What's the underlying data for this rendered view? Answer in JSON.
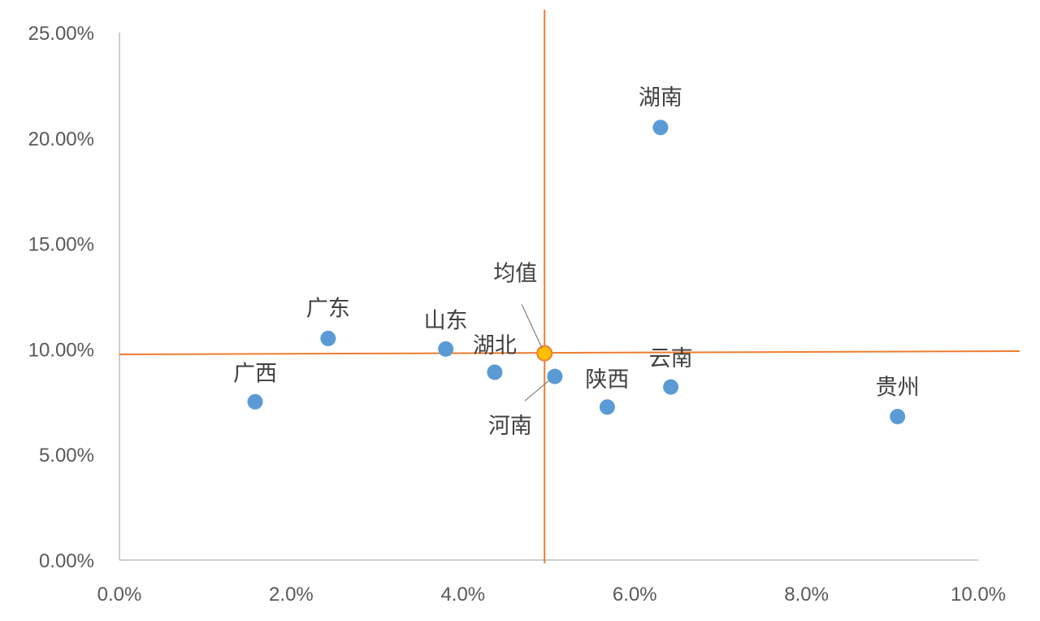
{
  "chart_data": {
    "type": "scatter",
    "title": "",
    "xlabel": "",
    "ylabel": "",
    "xlim": [
      0,
      0.1
    ],
    "ylim": [
      0,
      0.25
    ],
    "x_ticks": [
      "0.0%",
      "2.0%",
      "4.0%",
      "6.0%",
      "8.0%",
      "10.0%"
    ],
    "y_ticks": [
      "0.00%",
      "5.00%",
      "10.00%",
      "15.00%",
      "20.00%",
      "25.00%"
    ],
    "points": [
      {
        "label": "广西",
        "x": 0.0158,
        "y": 0.075
      },
      {
        "label": "广东",
        "x": 0.0243,
        "y": 0.105
      },
      {
        "label": "山东",
        "x": 0.038,
        "y": 0.1
      },
      {
        "label": "湖北",
        "x": 0.0437,
        "y": 0.089
      },
      {
        "label": "河南",
        "x": 0.0507,
        "y": 0.087
      },
      {
        "label": "陕西",
        "x": 0.0568,
        "y": 0.0725
      },
      {
        "label": "湖南",
        "x": 0.063,
        "y": 0.205
      },
      {
        "label": "云南",
        "x": 0.0642,
        "y": 0.082
      },
      {
        "label": "贵州",
        "x": 0.0906,
        "y": 0.068
      }
    ],
    "mean": {
      "label": "均值",
      "x": 0.0495,
      "y": 0.098
    },
    "grid": false,
    "colors": {
      "point": "#5b9bd5",
      "mean_line": "#ed7d31",
      "mean_point": "#ffc000",
      "axis": "#bfbfbf"
    }
  }
}
